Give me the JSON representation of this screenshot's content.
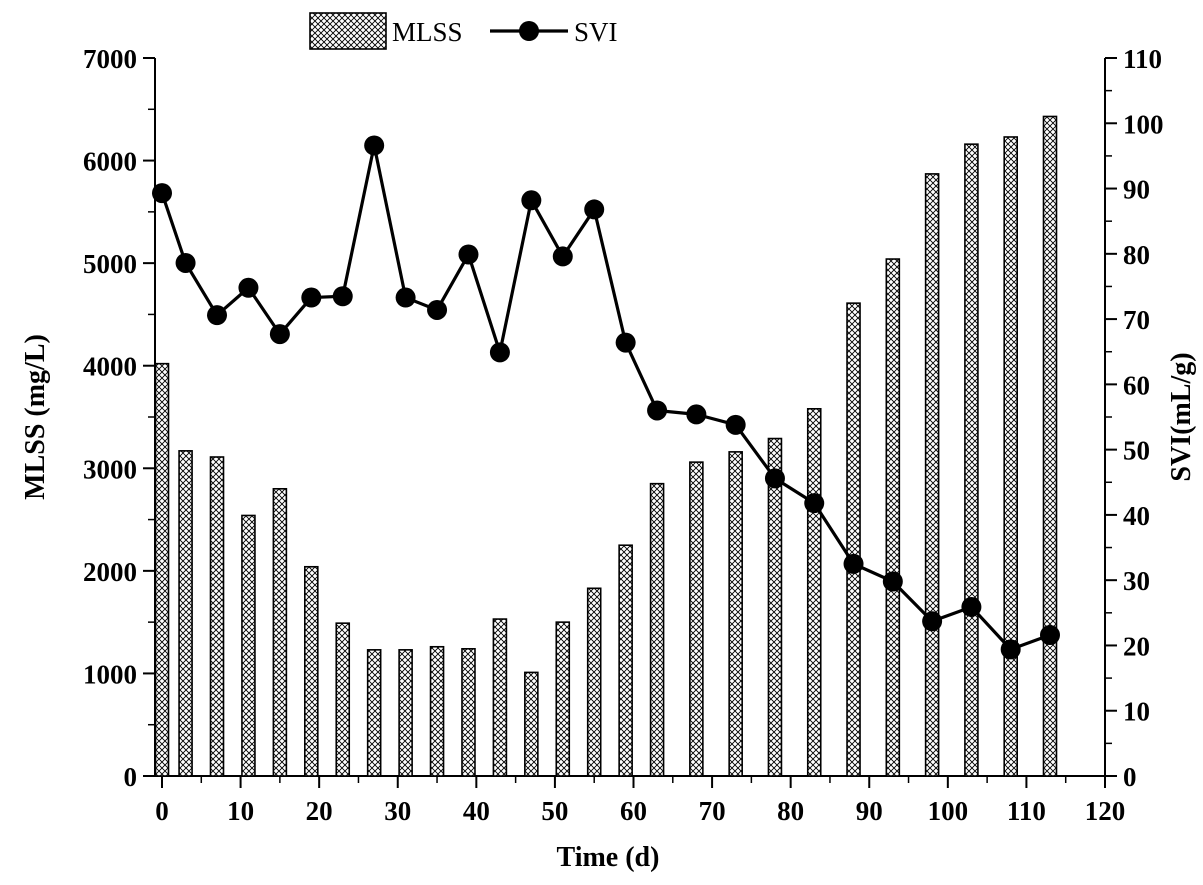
{
  "chart_data": {
    "type": "bar",
    "x_type": "numeric",
    "xlabel": "Time (d)",
    "xlim": [
      0,
      120
    ],
    "x_ticks": [
      0,
      10,
      20,
      30,
      40,
      50,
      60,
      70,
      80,
      90,
      100,
      110,
      120
    ],
    "y_left": {
      "label": "MLSS (mg/L)",
      "lim": [
        0,
        7000
      ],
      "ticks": [
        0,
        1000,
        2000,
        3000,
        4000,
        5000,
        6000,
        7000
      ]
    },
    "y_right": {
      "label": "SVI(mL/g)",
      "lim": [
        0,
        110
      ],
      "ticks": [
        0,
        10,
        20,
        30,
        40,
        50,
        60,
        70,
        80,
        90,
        100,
        110
      ]
    },
    "legend_position": "top-center",
    "series": [
      {
        "name": "MLSS",
        "type": "bar",
        "axis": "left",
        "x": [
          0,
          3,
          7,
          11,
          15,
          19,
          23,
          27,
          31,
          35,
          39,
          43,
          47,
          51,
          55,
          59,
          63,
          68,
          73,
          78,
          83,
          88,
          93,
          98,
          103,
          108,
          113
        ],
        "values": [
          4020,
          3170,
          3110,
          2540,
          2800,
          2040,
          1490,
          1230,
          1230,
          1260,
          1240,
          1530,
          1010,
          1500,
          1830,
          2250,
          2850,
          3060,
          3160,
          3290,
          3580,
          4610,
          5040,
          5870,
          6160,
          6230,
          6430
        ]
      },
      {
        "name": "SVI",
        "type": "line",
        "axis": "right",
        "x": [
          0,
          3,
          7,
          11,
          15,
          19,
          23,
          27,
          31,
          35,
          39,
          43,
          47,
          51,
          55,
          59,
          63,
          68,
          73,
          78,
          83,
          88,
          93,
          98,
          103,
          108,
          113
        ],
        "values": [
          89.3,
          78.6,
          70.6,
          74.8,
          67.7,
          73.3,
          73.5,
          96.6,
          73.3,
          71.4,
          79.9,
          64.9,
          88.2,
          79.6,
          86.8,
          66.4,
          56.0,
          55.4,
          53.8,
          45.6,
          41.8,
          32.5,
          29.8,
          23.7,
          25.9,
          19.4,
          21.6
        ]
      }
    ]
  }
}
